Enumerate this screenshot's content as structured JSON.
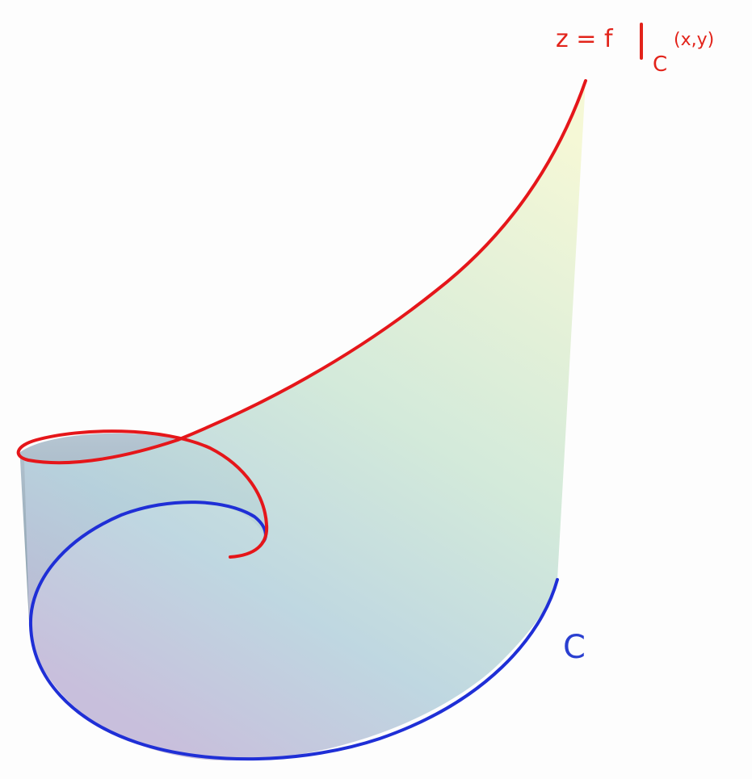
{
  "labels": {
    "surface_curve": {
      "expression": "z = f",
      "restriction": "C",
      "arguments": "(x,y)"
    },
    "base_curve": "C"
  }
}
